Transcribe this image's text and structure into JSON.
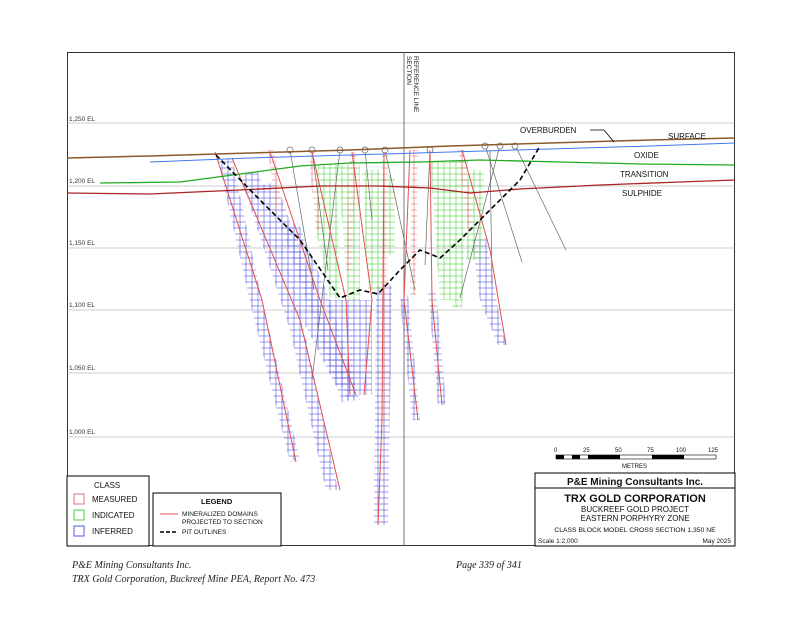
{
  "elevation_labels": [
    "1,250 EL",
    "1,200 EL",
    "1,150 EL",
    "1,100 EL",
    "1,050 EL",
    "1,000 EL"
  ],
  "section_line_label": "SECTION\nREFERENCE LINE",
  "section_line_label_lines": [
    "SECTION",
    "REFERENCE LINE"
  ],
  "zones": {
    "overburden": "OVERBURDEN",
    "surface": "SURFACE",
    "oxide": "OXIDE",
    "transition": "TRANSITION",
    "sulphide": "SULPHIDE"
  },
  "scale_bar": {
    "ticks": [
      "0",
      "25",
      "50",
      "75",
      "100",
      "125"
    ],
    "unit": "METRES"
  },
  "class_legend": {
    "title": "CLASS",
    "items": [
      {
        "label": "MEASURED",
        "color": "#e07070"
      },
      {
        "label": "INDICATED",
        "color": "#55cc44"
      },
      {
        "label": "INFERRED",
        "color": "#5555dd"
      }
    ]
  },
  "legend": {
    "title": "LEGEND",
    "mineralized_line1": "MINERALIZED DOMAINS",
    "mineralized_line2": "PROJECTED TO SECTION",
    "pit": "PIT OUTLINES"
  },
  "title_block": {
    "company": "P&E Mining Consultants Inc.",
    "client": "TRX GOLD CORPORATION",
    "project": "BUCKREEF GOLD PROJECT",
    "zone": "EASTERN PORPHYRY ZONE",
    "section": "CLASS BLOCK MODEL CROSS SECTION 1,350 NE",
    "scale": "Scale 1:2,000",
    "date": "May 2025"
  },
  "footer": {
    "line1": "P&E Mining Consultants Inc.",
    "line2": "TRX Gold Corporation, Buckreef Mine PEA, Report No. 473",
    "page": "Page 339 of 341"
  },
  "colors": {
    "surface": "#8b5a2b",
    "oxide": "#4477ee",
    "transition": "#22aa22",
    "sulphide": "#aa2222",
    "measured": "#e07070",
    "indicated": "#55cc44",
    "inferred": "#5555dd",
    "pit": "#000000"
  }
}
